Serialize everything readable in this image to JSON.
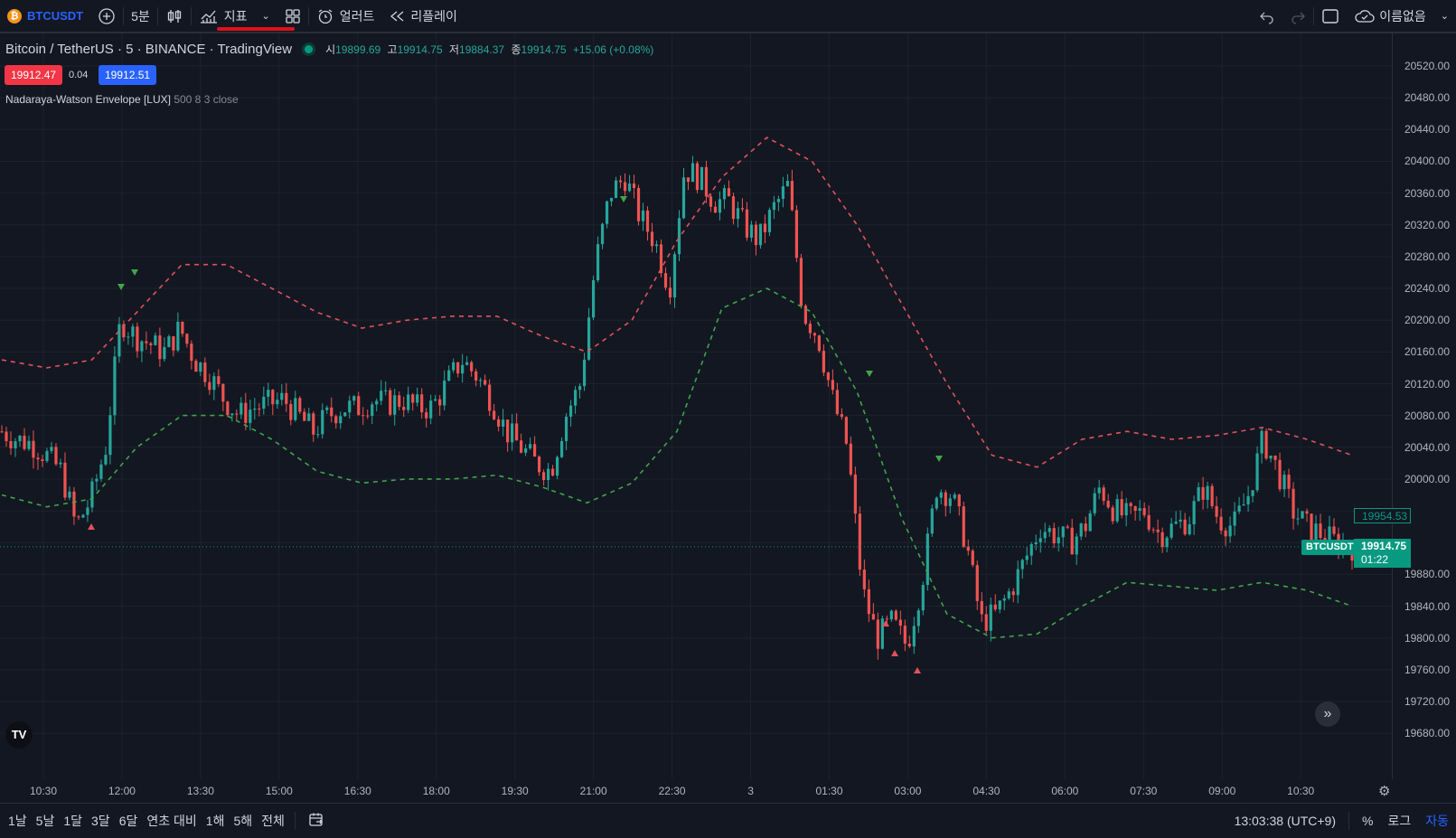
{
  "toolbar": {
    "symbol": "BTCUSDT",
    "interval": "5분",
    "indicators_label": "지표",
    "alert_label": "얼러트",
    "replay_label": "리플레이",
    "layout_name": "이름없음"
  },
  "legend": {
    "title": "Bitcoin / TetherUS · 5 · BINANCE · TradingView",
    "ohlc": {
      "o_key": "시",
      "o": "19899.69",
      "h_key": "고",
      "h": "19914.75",
      "l_key": "저",
      "l": "19884.37",
      "c_key": "종",
      "c": "19914.75",
      "change": "+15.06 (+0.08%)"
    },
    "bid": "19912.47",
    "spread": "0.04",
    "ask": "19912.51"
  },
  "indicator": {
    "name": "Nadaraya-Watson Envelope [LUX]",
    "params": "500 8 3 close"
  },
  "price_axis": {
    "labels": [
      "20520.00",
      "20480.00",
      "20440.00",
      "20400.00",
      "20360.00",
      "20320.00",
      "20280.00",
      "20240.00",
      "20200.00",
      "20160.00",
      "20120.00",
      "20080.00",
      "20040.00",
      "20000.00",
      "19880.00",
      "19840.00",
      "19800.00",
      "19760.00",
      "19720.00",
      "19680.00"
    ],
    "symbol_tag": "BTCUSDT",
    "last_price": "19914.75",
    "countdown": "01:22",
    "upper_band_value": "19954.53"
  },
  "time_axis": {
    "labels": [
      "10:30",
      "12:00",
      "13:30",
      "15:00",
      "16:30",
      "18:00",
      "19:30",
      "21:00",
      "22:30",
      "3",
      "01:30",
      "03:00",
      "04:30",
      "06:00",
      "07:30",
      "09:00",
      "10:30"
    ]
  },
  "bottombar": {
    "ranges": [
      "1날",
      "5날",
      "1달",
      "3달",
      "6달",
      "연초 대비",
      "1해",
      "5해",
      "전체"
    ],
    "clock": "13:03:38 (UTC+9)",
    "percent": "%",
    "log": "로그",
    "auto": "자동"
  },
  "colors": {
    "up": "#26a69a",
    "down": "#ef5350",
    "upper_band": "#e0525a",
    "lower_band": "#3fa64a",
    "accent": "#2962ff"
  },
  "chart_data": {
    "type": "candlestick",
    "ylim": [
      19660,
      20540
    ],
    "x_ticks": [
      "10:30",
      "12:00",
      "13:30",
      "15:00",
      "16:30",
      "18:00",
      "19:30",
      "21:00",
      "22:30",
      "3",
      "01:30",
      "03:00",
      "04:30",
      "06:00",
      "07:30",
      "09:00",
      "10:30"
    ],
    "close_path_estimate": [
      20060,
      20050,
      20045,
      20030,
      20010,
      19940,
      19975,
      20040,
      20200,
      20180,
      20170,
      20160,
      20190,
      20150,
      20130,
      20100,
      20080,
      20090,
      20095,
      20100,
      20080,
      20060,
      20080,
      20090,
      20090,
      20100,
      20095,
      20100,
      20090,
      20090,
      20120,
      20150,
      20130,
      20100,
      20060,
      20040,
      20020,
      20010,
      20080,
      20120,
      20270,
      20360,
      20380,
      20330,
      20300,
      20240,
      20390,
      20380,
      20350,
      20350,
      20320,
      20300,
      20340,
      20370,
      20210,
      20180,
      20100,
      20040,
      19860,
      19800,
      19820,
      19790,
      19870,
      19990,
      19980,
      19920,
      19820,
      19830,
      19860,
      19900,
      19940,
      19930,
      19920,
      19940,
      19990,
      19960,
      19950,
      19960,
      19930,
      19940,
      19950,
      19990,
      19950,
      19940,
      19980,
      20050,
      20010,
      19960,
      19940,
      19930,
      19920,
      19915
    ],
    "upper_band_estimate": [
      20150,
      20140,
      20150,
      20210,
      20270,
      20270,
      20240,
      20210,
      20190,
      20200,
      20205,
      20205,
      20180,
      20160,
      20200,
      20300,
      20380,
      20430,
      20400,
      20320,
      20220,
      20120,
      20030,
      20015,
      20050,
      20060,
      20050,
      20055,
      20065,
      20050,
      20030
    ],
    "lower_band_estimate": [
      19980,
      19965,
      19975,
      20040,
      20080,
      20080,
      20050,
      20010,
      19995,
      20000,
      20000,
      20005,
      19990,
      19970,
      19995,
      20060,
      20215,
      20240,
      20210,
      20110,
      19950,
      19830,
      19800,
      19805,
      19840,
      19870,
      19865,
      19860,
      19870,
      19860,
      19840
    ]
  }
}
